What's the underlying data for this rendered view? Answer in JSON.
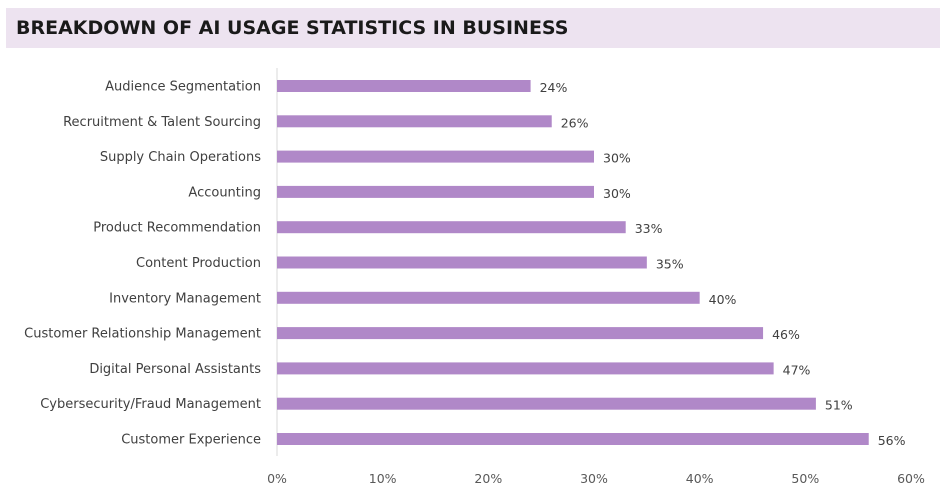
{
  "header": {
    "title": "BREAKDOWN OF AI USAGE STATISTICS IN BUSINESS"
  },
  "chart_data": {
    "type": "bar",
    "orientation": "horizontal",
    "title": "BREAKDOWN OF AI USAGE STATISTICS IN BUSINESS",
    "xlabel": "",
    "ylabel": "",
    "categories": [
      "Audience Segmentation",
      "Recruitment & Talent Sourcing",
      "Supply Chain Operations",
      "Accounting",
      "Product Recommendation",
      "Content Production",
      "Inventory Management",
      "Customer Relationship Management",
      "Digital Personal Assistants",
      "Cybersecurity/Fraud Management",
      "Customer Experience"
    ],
    "values": [
      24,
      26,
      30,
      30,
      33,
      35,
      40,
      46,
      47,
      51,
      56
    ],
    "value_labels": [
      "24%",
      "26%",
      "30%",
      "30%",
      "33%",
      "35%",
      "40%",
      "46%",
      "47%",
      "51%",
      "56%"
    ],
    "xlim": [
      0,
      60
    ],
    "xticks": [
      0,
      10,
      20,
      30,
      40,
      50,
      60
    ],
    "xtick_labels": [
      "0%",
      "10%",
      "20%",
      "30%",
      "40%",
      "50%",
      "60%"
    ],
    "grid": false,
    "legend": "none",
    "bar_color": "#b088c8",
    "title_bar_color": "#ede3f0"
  }
}
